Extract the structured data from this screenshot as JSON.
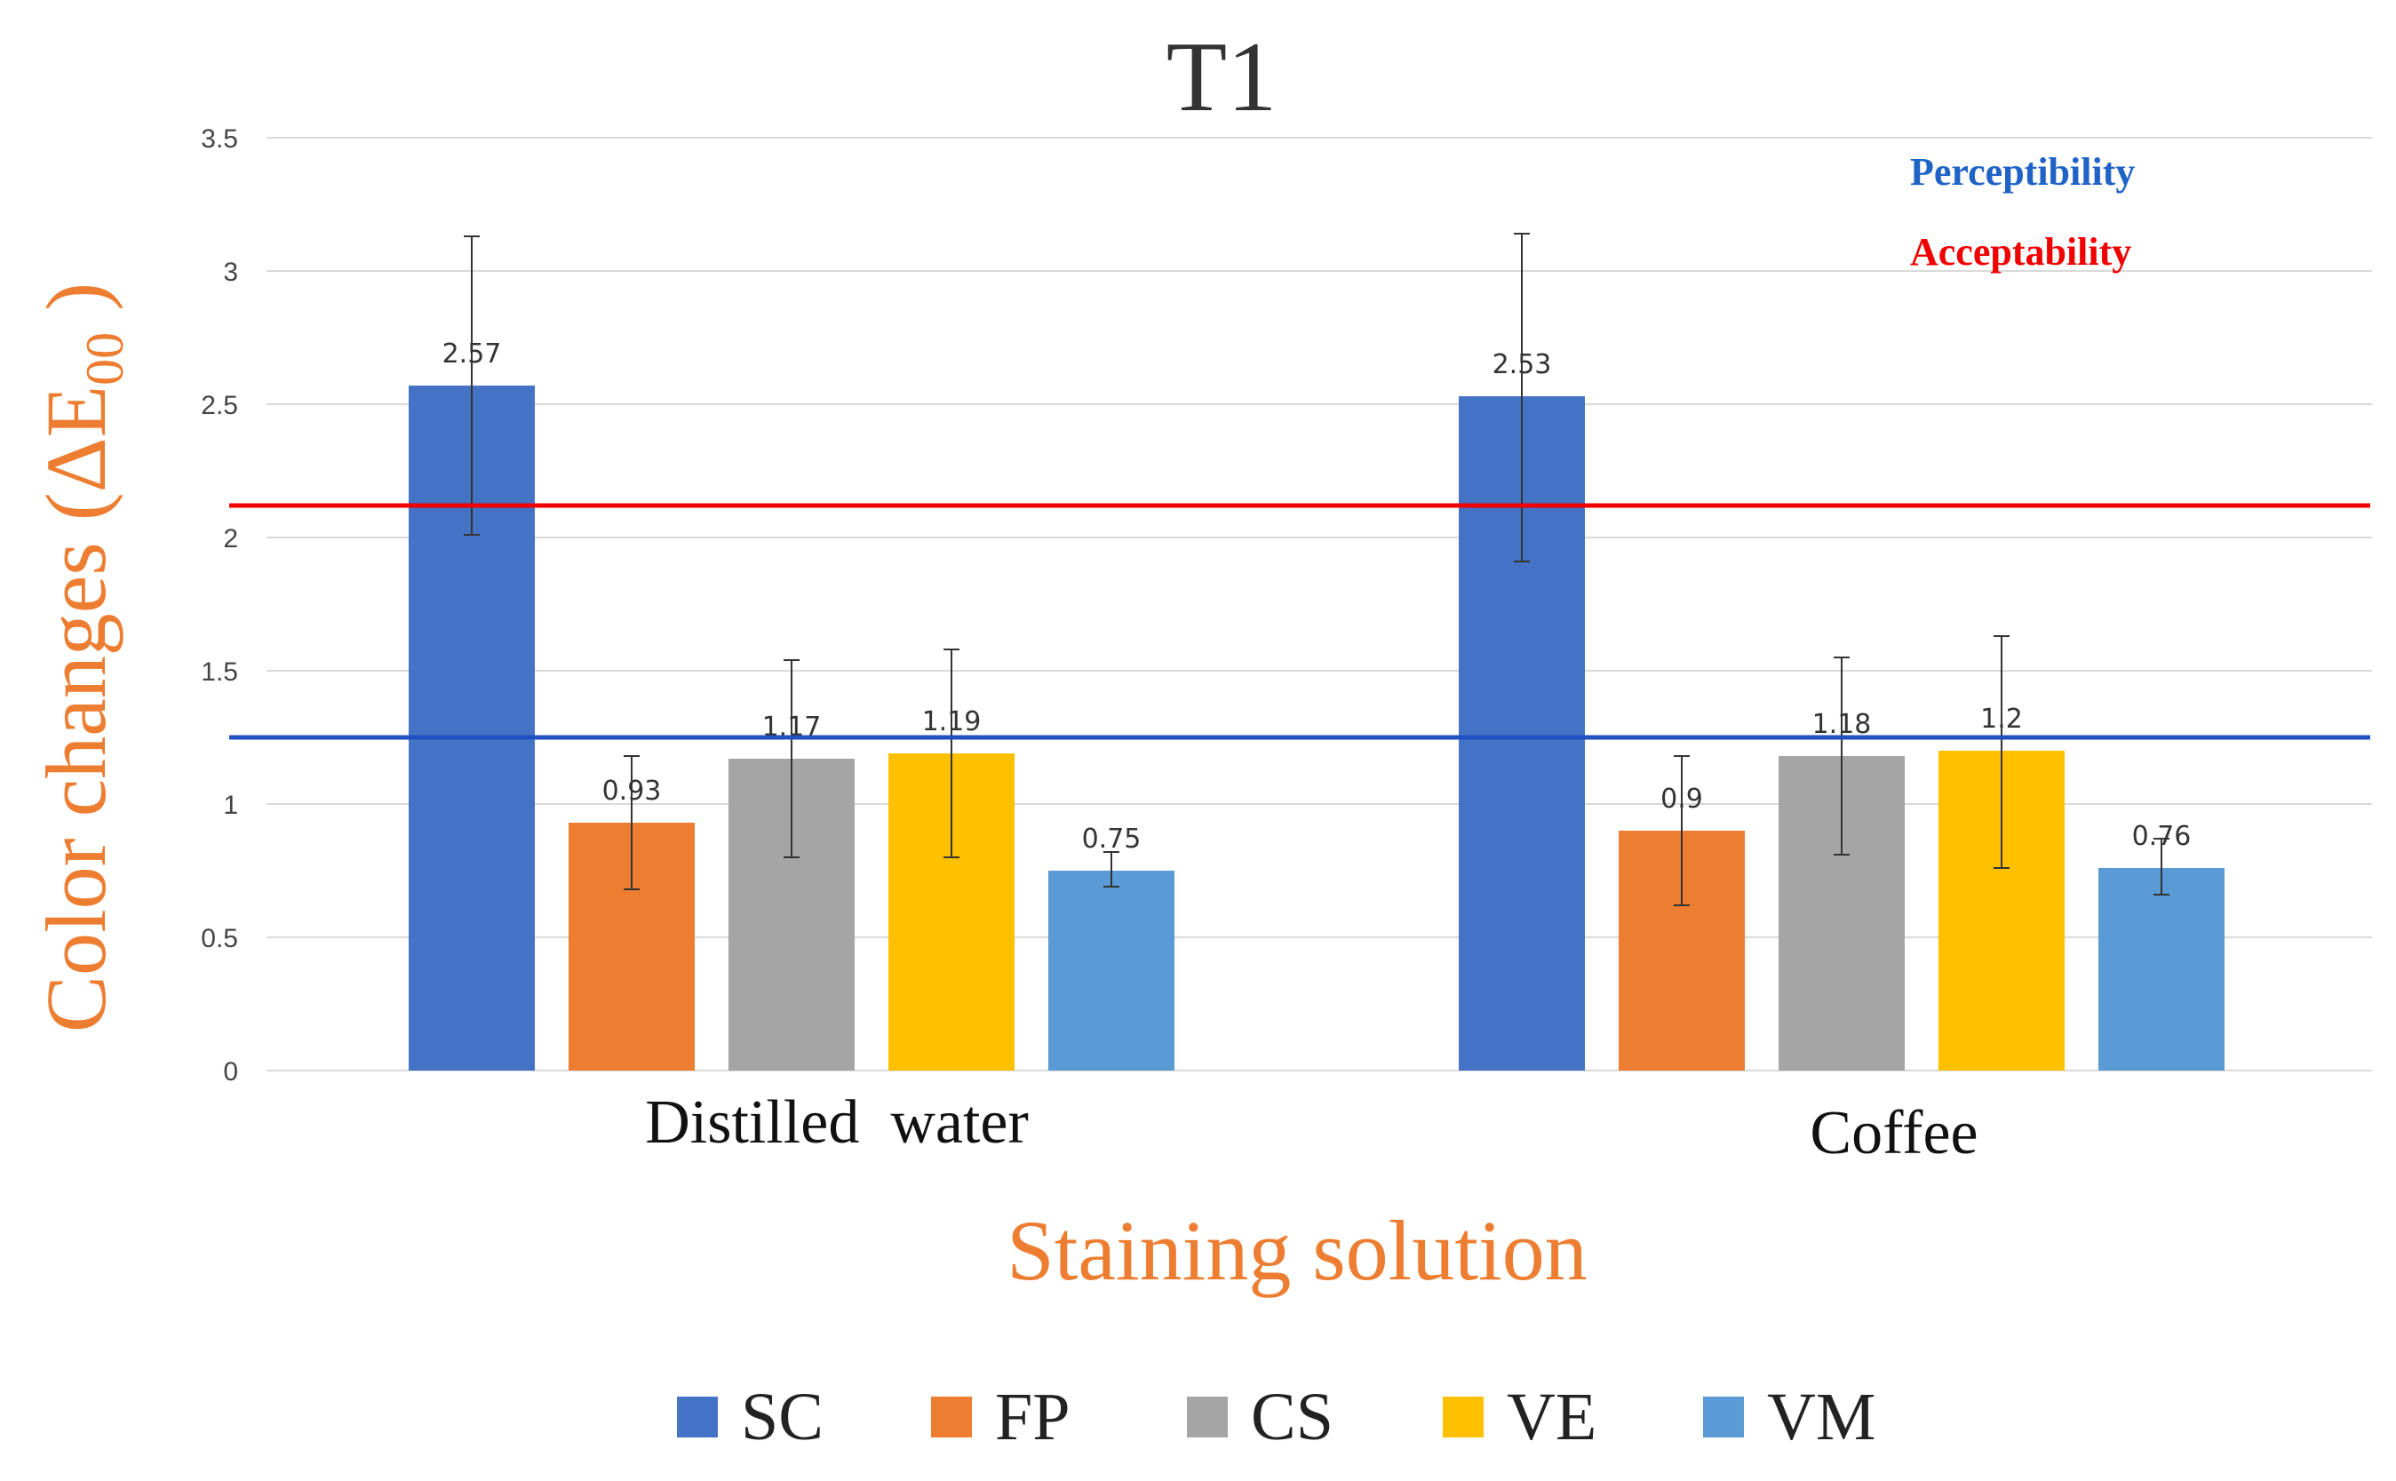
{
  "chart_data": {
    "type": "bar",
    "title": "T1",
    "xlabel": "Staining solution",
    "ylabel": "Color changes (ΔE",
    "ylabel_subscript": "00",
    "ylabel_close": " )",
    "ylim": [
      0,
      3.5
    ],
    "yticks": [
      0,
      0.5,
      1,
      1.5,
      2,
      2.5,
      3,
      3.5
    ],
    "ytick_labels": [
      "0",
      "0.5",
      "1",
      "1.5",
      "2",
      "2.5",
      "3",
      "3.5"
    ],
    "grid": true,
    "categories": [
      "Distilled  water",
      "Coffee"
    ],
    "series": [
      {
        "name": "SC",
        "color": "#4472C4",
        "values": [
          2.57,
          2.53
        ],
        "labels": [
          "2.57",
          "2.53"
        ],
        "err_low": [
          2.01,
          1.91
        ],
        "err_high": [
          3.13,
          3.14
        ]
      },
      {
        "name": "FP",
        "color": "#ED7D31",
        "values": [
          0.93,
          0.9
        ],
        "labels": [
          "0.93",
          "0.9"
        ],
        "err_low": [
          0.68,
          0.62
        ],
        "err_high": [
          1.18,
          1.18
        ]
      },
      {
        "name": "CS",
        "color": "#A5A5A5",
        "values": [
          1.17,
          1.18
        ],
        "labels": [
          "1.17",
          "1.18"
        ],
        "err_low": [
          0.8,
          0.81
        ],
        "err_high": [
          1.54,
          1.55
        ]
      },
      {
        "name": "VE",
        "color": "#FFC000",
        "values": [
          1.19,
          1.2
        ],
        "labels": [
          "1.19",
          "1.2"
        ],
        "err_low": [
          0.8,
          0.76
        ],
        "err_high": [
          1.58,
          1.63
        ]
      },
      {
        "name": "VM",
        "color": "#5B9BD5",
        "values": [
          0.75,
          0.76
        ],
        "labels": [
          "0.75",
          "0.76"
        ],
        "err_low": [
          0.69,
          0.66
        ],
        "err_high": [
          0.82,
          0.87
        ]
      }
    ],
    "reference_lines": [
      {
        "name": "Perceptibility",
        "value": 1.25,
        "color": "#1F4FC1",
        "text_color": "#1F63C6"
      },
      {
        "name": "Acceptability",
        "value": 2.12,
        "color": "#F00000",
        "text_color": "#F00000"
      }
    ],
    "legend_position": "bottom",
    "axis_label_color": "#ED7D31"
  }
}
